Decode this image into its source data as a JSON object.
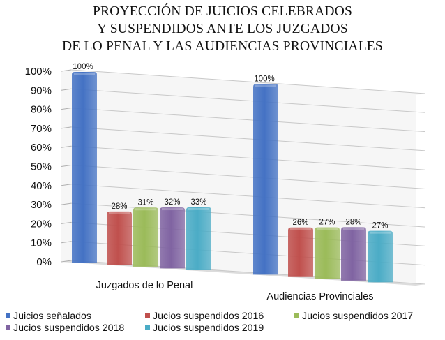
{
  "chart_data": {
    "type": "bar",
    "title_lines": [
      "PROYECCIÓN DE JUICIOS CELEBRADOS",
      "Y SUSPENDIDOS ANTE LOS JUZGADOS",
      "DE LO PENAL Y LAS AUDIENCIAS PROVINCIALES"
    ],
    "categories": [
      "Juzgados de lo Penal",
      "Audiencias Provinciales"
    ],
    "ylim": [
      0,
      100
    ],
    "y_ticks": [
      "0%",
      "10%",
      "20%",
      "30%",
      "40%",
      "50%",
      "60%",
      "70%",
      "80%",
      "90%",
      "100%"
    ],
    "grid": true,
    "legend_position": "bottom",
    "series": [
      {
        "name": "Juicios señalados",
        "values": [
          100,
          100
        ],
        "labels": [
          "100%",
          "100%"
        ],
        "color": "#4472C4"
      },
      {
        "name": "Jucios suspendidos 2016",
        "values": [
          28,
          26
        ],
        "labels": [
          "28%",
          "26%"
        ],
        "color": "#C0504D"
      },
      {
        "name": "Jucios suspendidos 2017",
        "values": [
          31,
          27
        ],
        "labels": [
          "31%",
          "27%"
        ],
        "color": "#9BBB59"
      },
      {
        "name": "Jucios suspendidos 2018",
        "values": [
          32,
          28
        ],
        "labels": [
          "32%",
          "28%"
        ],
        "color": "#8064A2"
      },
      {
        "name": "Jucios suspendidos 2019",
        "values": [
          33,
          27
        ],
        "labels": [
          "33%",
          "27%"
        ],
        "color": "#4BACC6"
      }
    ]
  }
}
